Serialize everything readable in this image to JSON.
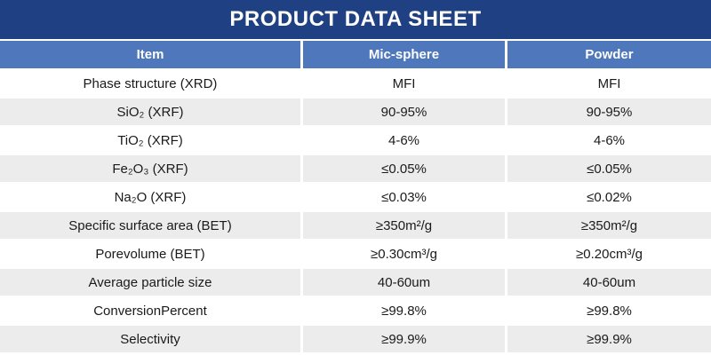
{
  "title": "PRODUCT DATA SHEET",
  "colors": {
    "title_bg": "#1f4082",
    "header_bg": "#4e77bc",
    "header_text": "#ffffff",
    "row_bg": "#ffffff",
    "row_alt_bg": "#ececec",
    "body_text": "#1a1a1a"
  },
  "table": {
    "columns": [
      "Item",
      "Mic-sphere",
      "Powder"
    ],
    "rows": [
      {
        "item": "Phase structure (XRD)",
        "mic_sphere": "MFI",
        "powder": "MFI"
      },
      {
        "item": "SiO₂ (XRF)",
        "mic_sphere": "90-95%",
        "powder": "90-95%"
      },
      {
        "item": "TiO₂ (XRF)",
        "mic_sphere": "4-6%",
        "powder": "4-6%"
      },
      {
        "item": "Fe₂O₃ (XRF)",
        "mic_sphere": "≤0.05%",
        "powder": "≤0.05%"
      },
      {
        "item": "Na₂O (XRF)",
        "mic_sphere": "≤0.03%",
        "powder": "≤0.02%"
      },
      {
        "item": "Specific surface area (BET)",
        "mic_sphere": "≥350m²/g",
        "powder": "≥350m²/g"
      },
      {
        "item": "Porevolume (BET)",
        "mic_sphere": "≥0.30cm³/g",
        "powder": "≥0.20cm³/g"
      },
      {
        "item": "Average particle size",
        "mic_sphere": "40-60um",
        "powder": "40-60um"
      },
      {
        "item": "ConversionPercent",
        "mic_sphere": "≥99.8%",
        "powder": "≥99.8%"
      },
      {
        "item": "Selectivity",
        "mic_sphere": "≥99.9%",
        "powder": "≥99.9%"
      }
    ]
  }
}
